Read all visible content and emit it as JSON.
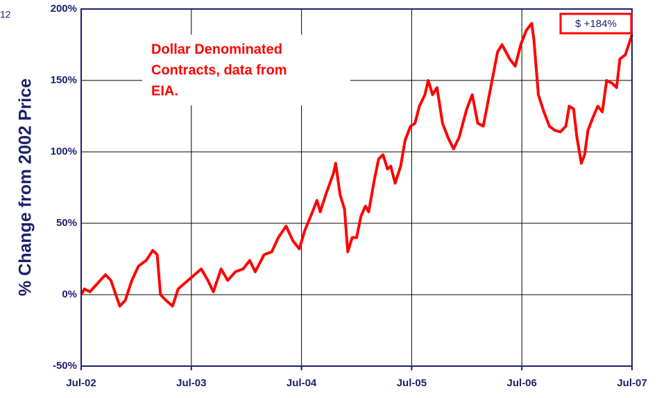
{
  "page_number": "12",
  "chart_data": {
    "type": "line",
    "y_label": "% Change from 2002 Price",
    "note_lines": [
      "Dollar Denominated",
      "Contracts, data from",
      "EIA."
    ],
    "value_box": "$ +184%",
    "xlim": [
      2002.5,
      2007.5
    ],
    "xticks": [
      {
        "value": 2002.5,
        "label": "Jul-02"
      },
      {
        "value": 2003.5,
        "label": "Jul-03"
      },
      {
        "value": 2004.5,
        "label": "Jul-04"
      },
      {
        "value": 2005.5,
        "label": "Jul-05"
      },
      {
        "value": 2006.5,
        "label": "Jul-06"
      },
      {
        "value": 2007.5,
        "label": "Jul-07"
      }
    ],
    "ylim": [
      -50,
      200
    ],
    "yticks": [
      {
        "value": -50,
        "label": "-50%"
      },
      {
        "value": 0,
        "label": "0%"
      },
      {
        "value": 50,
        "label": "50%"
      },
      {
        "value": 100,
        "label": "100%"
      },
      {
        "value": 150,
        "label": "150%"
      },
      {
        "value": 200,
        "label": "200%"
      }
    ],
    "grid": true,
    "x": [
      2002.5,
      2002.53,
      2002.58,
      2002.65,
      2002.72,
      2002.77,
      2002.85,
      2002.9,
      2002.96,
      2003.02,
      2003.09,
      2003.15,
      2003.19,
      2003.22,
      2003.27,
      2003.33,
      2003.38,
      2003.44,
      2003.5,
      2003.59,
      2003.65,
      2003.7,
      2003.77,
      2003.83,
      2003.9,
      2003.97,
      2004.03,
      2004.08,
      2004.16,
      2004.23,
      2004.29,
      2004.36,
      2004.42,
      2004.48,
      2004.53,
      2004.6,
      2004.64,
      2004.67,
      2004.72,
      2004.79,
      2004.81,
      2004.85,
      2004.89,
      2004.92,
      2004.96,
      2005.0,
      2005.04,
      2005.08,
      2005.11,
      2005.16,
      2005.2,
      2005.24,
      2005.28,
      2005.31,
      2005.35,
      2005.4,
      2005.44,
      2005.49,
      2005.53,
      2005.57,
      2005.62,
      2005.65,
      2005.69,
      2005.73,
      2005.78,
      2005.83,
      2005.88,
      2005.93,
      2006.0,
      2006.05,
      2006.1,
      2006.15,
      2006.18,
      2006.23,
      2006.28,
      2006.32,
      2006.39,
      2006.44,
      2006.49,
      2006.54,
      2006.59,
      2006.61,
      2006.65,
      2006.7,
      2006.75,
      2006.8,
      2006.85,
      2006.9,
      2006.93,
      2006.97,
      2007.0,
      2007.04,
      2007.07,
      2007.1,
      2007.15,
      2007.19,
      2007.23,
      2007.27,
      2007.32,
      2007.36,
      2007.39,
      2007.44,
      2007.5
    ],
    "series": [
      {
        "color": "#ff0000",
        "values": [
          0,
          4,
          2,
          8,
          14,
          10,
          -8,
          -4,
          10,
          20,
          24,
          31,
          28,
          0,
          -4,
          -8,
          4,
          8,
          12,
          18,
          10,
          2,
          18,
          10,
          16,
          18,
          24,
          16,
          28,
          30,
          40,
          48,
          38,
          32,
          45,
          58,
          66,
          58,
          70,
          85,
          92,
          70,
          60,
          30,
          40,
          40,
          55,
          62,
          58,
          80,
          95,
          98,
          88,
          90,
          78,
          90,
          108,
          118,
          120,
          132,
          140,
          150,
          140,
          145,
          120,
          110,
          102,
          110,
          130,
          140,
          120,
          118,
          130,
          150,
          170,
          175,
          165,
          160,
          175,
          185,
          190,
          178,
          140,
          128,
          118,
          115,
          114,
          118,
          132,
          130,
          110,
          92,
          98,
          115,
          125,
          132,
          128,
          150,
          148,
          145,
          165,
          168,
          182
        ]
      }
    ]
  }
}
